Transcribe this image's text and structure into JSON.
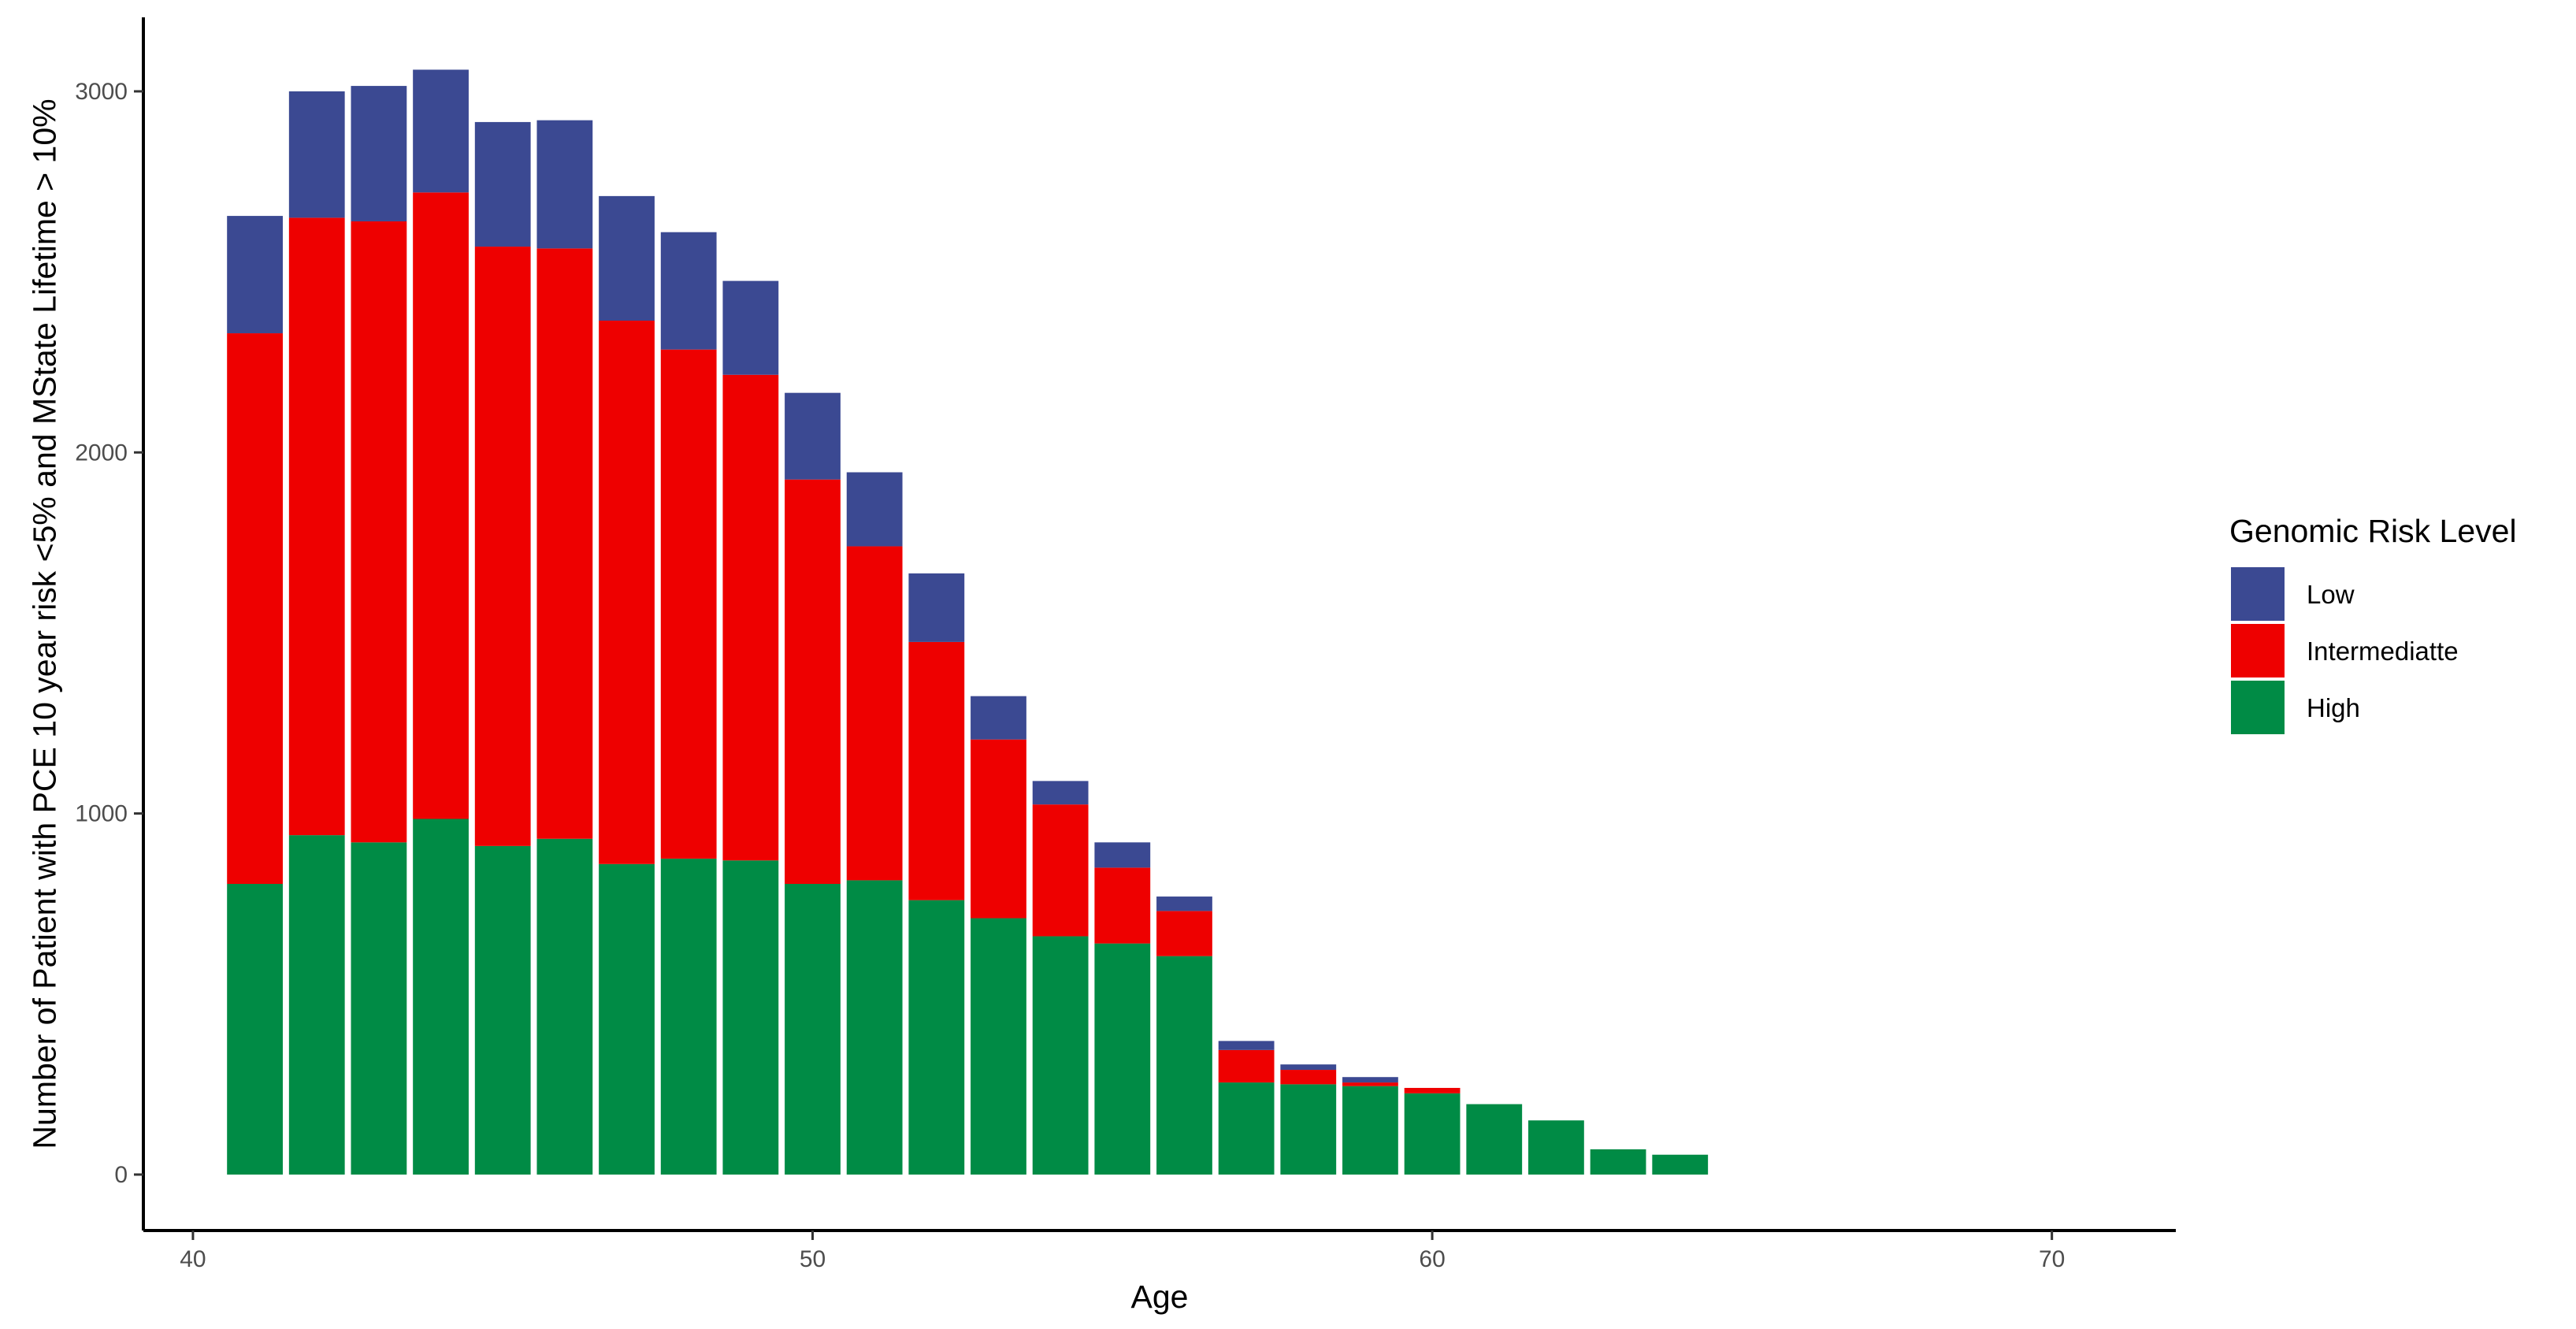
{
  "chart_data": {
    "type": "bar",
    "stacked": true,
    "title": "",
    "xlabel": "Age",
    "ylabel": "Number of Patient with PCE 10 year risk <5% and MState Lifetime > 10%",
    "xlim": [
      39.2,
      72.0
    ],
    "ylim": [
      -155,
      3205
    ],
    "x_ticks": [
      40,
      50,
      60,
      70
    ],
    "y_ticks": [
      0,
      1000,
      2000,
      3000
    ],
    "x_tick_labels": [
      "40",
      "50",
      "60",
      "70"
    ],
    "y_tick_labels": [
      "0",
      "1000",
      "2000",
      "3000"
    ],
    "grid": false,
    "legend_position": "right",
    "legend_title": "Genomic Risk Level",
    "x": [
      41,
      42,
      43,
      44,
      45,
      46,
      47,
      48,
      49,
      50,
      51,
      52,
      53,
      54,
      55,
      56,
      57,
      58,
      59,
      60,
      61,
      62,
      63,
      64
    ],
    "series": [
      {
        "name": "High",
        "color": "#008B45",
        "values": [
          805,
          940,
          920,
          985,
          910,
          930,
          860,
          875,
          870,
          805,
          815,
          760,
          710,
          660,
          640,
          605,
          255,
          250,
          245,
          225,
          195,
          150,
          70,
          55
        ]
      },
      {
        "name": "Intermediatte",
        "color": "#EE0000",
        "values": [
          1525,
          1710,
          1720,
          1735,
          1660,
          1635,
          1505,
          1410,
          1345,
          1120,
          925,
          715,
          495,
          365,
          210,
          125,
          90,
          40,
          10,
          15,
          0,
          0,
          0,
          0
        ]
      },
      {
        "name": "Low",
        "color": "#3B4992",
        "values": [
          325,
          350,
          375,
          340,
          345,
          355,
          345,
          325,
          260,
          240,
          205,
          190,
          120,
          65,
          70,
          40,
          25,
          15,
          15,
          0,
          0,
          0,
          0,
          0
        ]
      }
    ],
    "legend_order": [
      "Low",
      "Intermediatte",
      "High"
    ]
  }
}
